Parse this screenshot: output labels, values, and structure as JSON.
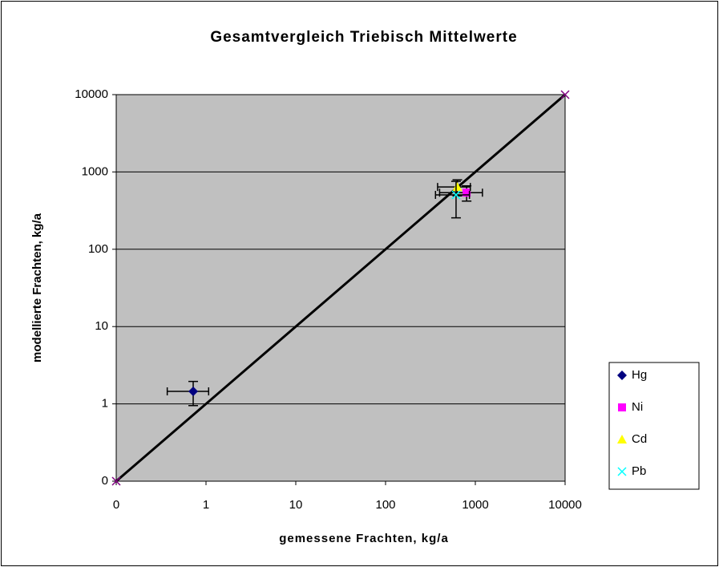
{
  "chart_data": {
    "type": "scatter",
    "title": "Gesamtvergleich Triebisch Mittelwerte",
    "x_label": "gemessene Frachten, kg/a",
    "y_label": "modellierte Frachten, kg/a",
    "log_x": true,
    "log_y": true,
    "grid": true,
    "legend": "right",
    "xlim": [
      0.1,
      10000
    ],
    "ylim": [
      0.1,
      10000
    ],
    "xticks": [
      {
        "value": 0.1,
        "label": "0"
      },
      1,
      10,
      100,
      1000,
      10000
    ],
    "yticks": [
      {
        "value": 0.1,
        "label": "0"
      },
      1,
      10,
      100,
      1000,
      10000
    ],
    "reference_line": {
      "x": [
        0.1,
        10000
      ],
      "values": [
        0.1,
        10000
      ],
      "color": "#000000",
      "marker_color": "#800080"
    },
    "series": [
      {
        "name": "Hg",
        "color": "#000080",
        "marker": "diamond",
        "x": [
          0.72
        ],
        "values": [
          1.45
        ],
        "xerr": [
          0.35
        ],
        "yerr": [
          0.5
        ]
      },
      {
        "name": "Ni",
        "color": "#ff00ff",
        "marker": "square",
        "x": [
          800
        ],
        "values": [
          540
        ],
        "xerr": [
          400
        ],
        "yerr": [
          120
        ]
      },
      {
        "name": "Cd",
        "color": "#ffff00",
        "marker": "triangle",
        "x": [
          630
        ],
        "values": [
          640
        ],
        "xerr": [
          250
        ],
        "yerr": [
          150
        ]
      },
      {
        "name": "Pb",
        "color": "#00ffff",
        "marker": "cross",
        "x": [
          610
        ],
        "values": [
          505
        ],
        "xerr": [
          250
        ],
        "yerr": [
          250
        ]
      }
    ]
  }
}
